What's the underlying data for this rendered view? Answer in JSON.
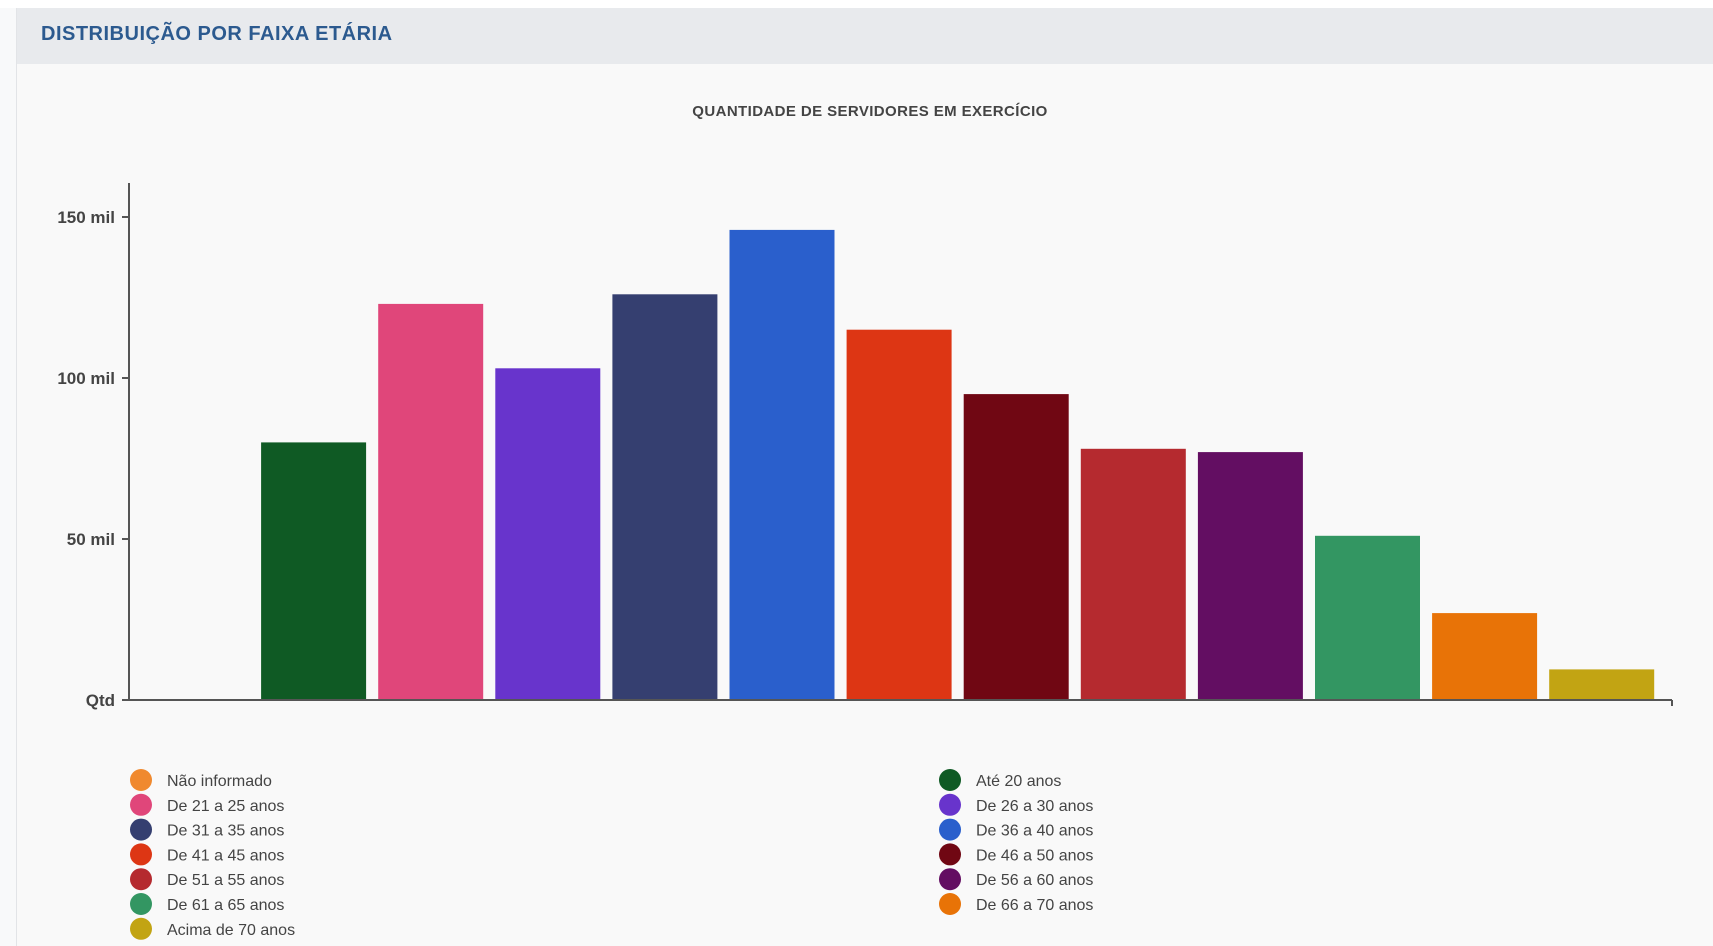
{
  "panel": {
    "title": "DISTRIBUIÇÃO POR FAIXA ETÁRIA"
  },
  "chart_data": {
    "type": "bar",
    "title": "QUANTIDADE DE SERVIDORES EM EXERCÍCIO",
    "ylim": [
      0,
      165000
    ],
    "yticks": [
      {
        "value": 0,
        "label": "Qtd"
      },
      {
        "value": 50000,
        "label": "50 mil"
      },
      {
        "value": 100000,
        "label": "100 mil"
      },
      {
        "value": 150000,
        "label": "150 mil"
      }
    ],
    "categories": [
      "Não informado",
      "Até 20 anos",
      "De 21 a 25 anos",
      "De 26 a 30 anos",
      "De 31 a 35 anos",
      "De 36 a 40 anos",
      "De 41 a 45 anos",
      "De 46 a 50 anos",
      "De 51 a 55 anos",
      "De 56 a 60 anos",
      "De 61 a 65 anos",
      "De 66 a 70 anos",
      "Acima de 70 anos"
    ],
    "values": [
      0,
      80000,
      123000,
      103000,
      126000,
      146000,
      115000,
      95000,
      78000,
      77000,
      51000,
      27000,
      9500
    ],
    "colors": [
      "#f0892e",
      "#0f5a24",
      "#e0467a",
      "#6834cc",
      "#353f70",
      "#2a5fcc",
      "#dd3614",
      "#700713",
      "#b52a2f",
      "#630e62",
      "#339662",
      "#e87307",
      "#c2a413"
    ],
    "grid": false,
    "legend_position": "bottom"
  }
}
